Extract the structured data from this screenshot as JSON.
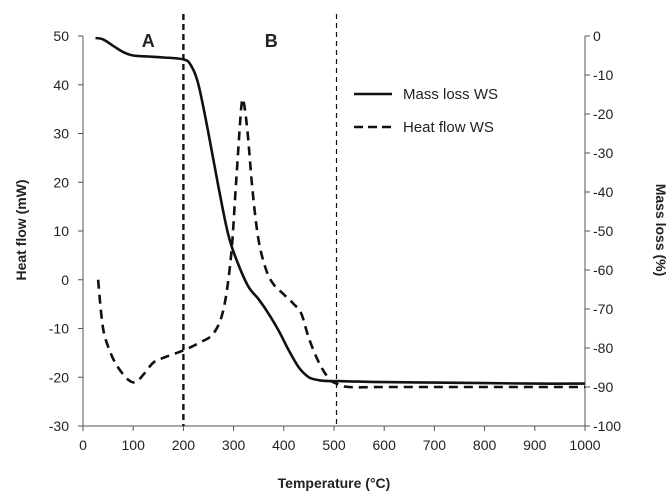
{
  "chart_data": {
    "type": "line",
    "xlabel": "Temperature (°C)",
    "ylabel_left": "Heat flow (mW)",
    "ylabel_right": "Mass loss (%)",
    "xlim": [
      0,
      1000
    ],
    "ylim_left": [
      -30,
      50
    ],
    "ylim_right": [
      -100,
      0
    ],
    "xticks": [
      "0",
      "100",
      "200",
      "300",
      "400",
      "500",
      "600",
      "700",
      "800",
      "900",
      "1000"
    ],
    "yticks_left": [
      "50",
      "40",
      "30",
      "20",
      "10",
      "0",
      "-10",
      "-20",
      "-30"
    ],
    "yticks_right": [
      "0",
      "-10",
      "-20",
      "-30",
      "-40",
      "-50",
      "-60",
      "-70",
      "-80",
      "-90",
      "-100"
    ],
    "grid": false,
    "legend_position": "top-right",
    "regions": [
      {
        "label": "A",
        "x": 130
      },
      {
        "label": "B",
        "x": 375
      }
    ],
    "vlines": [
      {
        "x": 200,
        "style": "heavy-dashed"
      },
      {
        "x": 505,
        "style": "light-dashed"
      }
    ],
    "series": [
      {
        "name": "Mass loss WS",
        "axis": "left",
        "style": "solid",
        "x": [
          25,
          40,
          60,
          80,
          100,
          130,
          160,
          200,
          215,
          230,
          250,
          270,
          290,
          310,
          330,
          350,
          370,
          390,
          410,
          430,
          450,
          470,
          490,
          510,
          550,
          600,
          700,
          800,
          900,
          1000
        ],
        "y": [
          49.6,
          49.3,
          48,
          46.7,
          46,
          45.8,
          45.6,
          45.2,
          44,
          40,
          30,
          19,
          9,
          3,
          -1.5,
          -4,
          -7,
          -10.5,
          -14.5,
          -18,
          -20,
          -20.6,
          -20.8,
          -20.8,
          -20.9,
          -21,
          -21.1,
          -21.2,
          -21.3,
          -21.3
        ]
      },
      {
        "name": "Heat flow WS",
        "axis": "left",
        "style": "dashed",
        "x": [
          30,
          40,
          55,
          70,
          90,
          105,
          120,
          140,
          160,
          200,
          230,
          260,
          280,
          295,
          305,
          315,
          320,
          328,
          338,
          350,
          365,
          380,
          400,
          420,
          435,
          450,
          470,
          490,
          505,
          530,
          600,
          700,
          800,
          900,
          1000
        ],
        "y": [
          0,
          -10,
          -15,
          -18,
          -20.5,
          -21,
          -19.5,
          -17,
          -16,
          -14.5,
          -13,
          -11,
          -6,
          5,
          20,
          35,
          36.5,
          30,
          18,
          8,
          2,
          -1,
          -3,
          -5,
          -7,
          -12,
          -17,
          -20.3,
          -21.3,
          -22,
          -22,
          -22,
          -22,
          -22,
          -22
        ]
      }
    ]
  }
}
